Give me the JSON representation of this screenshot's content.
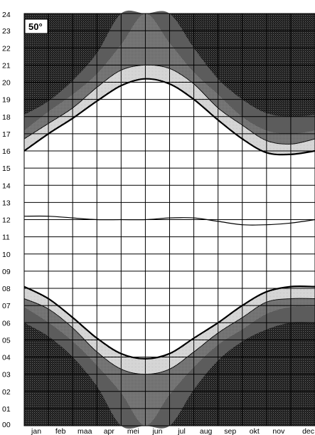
{
  "chart_data": {
    "type": "area",
    "title": "",
    "latitude_label": "50°",
    "xlabel": "",
    "ylabel": "",
    "x_tick_labels": [
      "jan",
      "feb",
      "maa",
      "apr",
      "mei",
      "jun",
      "jul",
      "aug",
      "sep",
      "okt",
      "nov",
      "dec"
    ],
    "y_tick_labels": [
      "00",
      "01",
      "02",
      "03",
      "04",
      "05",
      "06",
      "07",
      "08",
      "09",
      "10",
      "11",
      "12",
      "13",
      "14",
      "15",
      "16",
      "17",
      "18",
      "19",
      "20",
      "21",
      "22",
      "23",
      "24"
    ],
    "ylim": [
      0,
      24
    ],
    "xlim": [
      0,
      12
    ],
    "grid": true,
    "x_month_index": [
      0,
      1,
      2,
      3,
      4,
      5,
      6,
      7,
      8,
      9,
      10,
      11,
      12
    ],
    "series": [
      {
        "role": "sunrise",
        "values": [
          8.1,
          7.4,
          6.3,
          5.1,
          4.2,
          3.9,
          4.2,
          5.1,
          6.0,
          7.0,
          7.8,
          8.1,
          8.1
        ]
      },
      {
        "role": "sunset",
        "values": [
          16.0,
          17.0,
          17.9,
          18.9,
          19.8,
          20.2,
          19.9,
          19.0,
          17.8,
          16.7,
          15.9,
          15.8,
          16.0
        ]
      },
      {
        "role": "solar_noon",
        "values": [
          12.2,
          12.2,
          12.1,
          12.0,
          12.0,
          12.0,
          12.1,
          12.1,
          11.9,
          11.7,
          11.7,
          11.8,
          12.0
        ]
      },
      {
        "role": "civil_dawn",
        "values": [
          7.4,
          6.8,
          5.7,
          4.3,
          3.3,
          3.0,
          3.3,
          4.3,
          5.4,
          6.3,
          7.2,
          7.4,
          7.4
        ]
      },
      {
        "role": "civil_dusk",
        "values": [
          16.7,
          17.6,
          18.5,
          19.7,
          20.7,
          21.0,
          20.8,
          19.9,
          18.5,
          17.5,
          16.6,
          16.4,
          16.7
        ]
      },
      {
        "role": "nautical_dawn",
        "values": [
          6.9,
          6.0,
          4.9,
          3.5,
          1.9,
          0.0,
          1.8,
          3.4,
          4.7,
          5.6,
          6.5,
          6.9,
          6.9
        ]
      },
      {
        "role": "nautical_dusk",
        "values": [
          17.2,
          18.3,
          19.3,
          20.5,
          22.2,
          24.0,
          22.3,
          20.6,
          19.3,
          18.0,
          17.2,
          17.0,
          17.2
        ]
      },
      {
        "role": "astronomical_dawn",
        "values": [
          6.0,
          5.2,
          4.0,
          2.3,
          0.0,
          0.0,
          0.0,
          2.1,
          3.8,
          4.9,
          5.6,
          6.0,
          6.0
        ]
      },
      {
        "role": "astronomical_dusk",
        "values": [
          18.1,
          18.9,
          20.1,
          21.7,
          24.0,
          24.0,
          24.0,
          22.0,
          20.2,
          19.0,
          18.2,
          18.0,
          18.1
        ]
      }
    ],
    "colors": {
      "night": "#2f2f2f",
      "astronomical_twilight": "#5e5e5e",
      "nautical_twilight": "#8a8a8a",
      "civil_twilight": "#c8c8c8",
      "day": "#ffffff",
      "grid": "#000000"
    }
  }
}
